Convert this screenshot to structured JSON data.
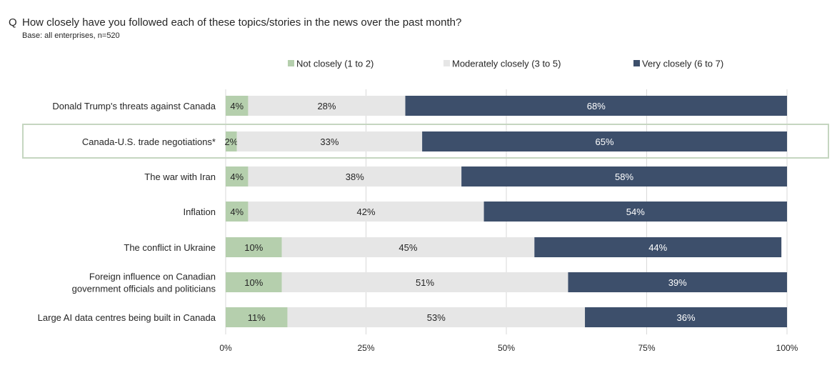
{
  "header": {
    "q_prefix": "Q",
    "question": "How closely have you followed each of these topics/stories in the news over the past month?",
    "base": "Base: all enterprises,  n=520"
  },
  "colors": {
    "not_closely": "#b5cfad",
    "moderately": "#e6e6e6",
    "very_closely": "#3d4f6b",
    "highlight_border": "#c5d6c0",
    "grid": "#d9d9d9"
  },
  "chart_data": {
    "type": "bar",
    "orientation": "horizontal",
    "stacked": true,
    "categories": [
      "Donald Trump's threats against Canada",
      "Canada-U.S. trade negotiations*",
      "The war with Iran",
      "Inflation",
      "The conflict in Ukraine",
      "Foreign influence on Canadian\ngovernment officials and politicians",
      "Large AI data centres being built in Canada"
    ],
    "series": [
      {
        "name": "Not closely (1 to 2)",
        "values": [
          4,
          2,
          4,
          4,
          10,
          10,
          11
        ]
      },
      {
        "name": "Moderately closely (3 to 5)",
        "values": [
          28,
          33,
          38,
          42,
          45,
          51,
          53
        ]
      },
      {
        "name": "Very closely (6 to 7)",
        "values": [
          68,
          65,
          58,
          54,
          44,
          39,
          36
        ]
      }
    ],
    "xlim": [
      0,
      100
    ],
    "xticks": [
      "0%",
      "25%",
      "50%",
      "75%",
      "100%"
    ],
    "highlighted_category": "Canada-U.S. trade negotiations*",
    "legend_position": "top",
    "grid": true
  }
}
